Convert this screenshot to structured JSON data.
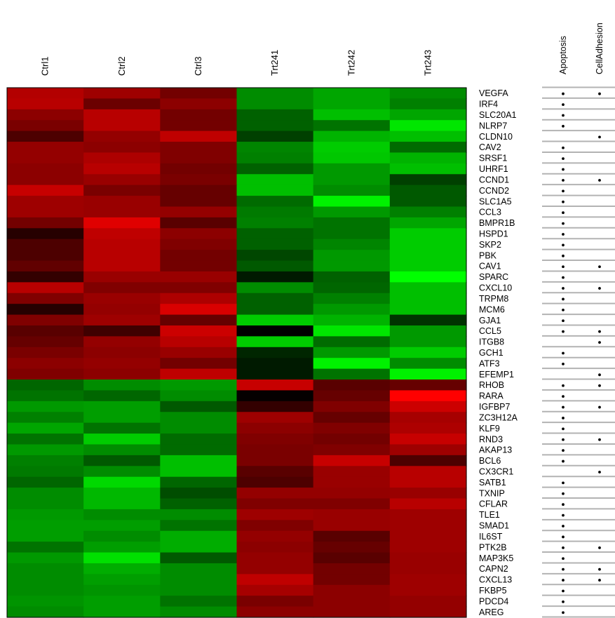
{
  "chart_data": {
    "type": "heatmap",
    "title": "",
    "columns": [
      "Ctrl1",
      "Ctrl2",
      "Ctrl3",
      "Trt241",
      "Trt242",
      "Trt243"
    ],
    "rows": [
      "VEGFA",
      "IRF4",
      "SLC20A1",
      "NLRP7",
      "CLDN10",
      "CAV2",
      "SRSF1",
      "UHRF1",
      "CCND1",
      "CCND2",
      "SLC1A5",
      "CCL3",
      "BMPR1B",
      "HSPD1",
      "SKP2",
      "PBK",
      "CAV1",
      "SPARC",
      "CXCL10",
      "TRPM8",
      "MCM6",
      "GJA1",
      "CCL5",
      "ITGB8",
      "GCH1",
      "ATF3",
      "EFEMP1",
      "RHOB",
      "RARA",
      "IGFBP7",
      "ZC3H12A",
      "KLF9",
      "RND3",
      "AKAP13",
      "BCL6",
      "CX3CR1",
      "SATB1",
      "TXNIP",
      "CFLAR",
      "TLE1",
      "SMAD1",
      "IL6ST",
      "PTK2B",
      "MAP3K5",
      "CAPN2",
      "CXCL13",
      "FKBP5",
      "PDCD4",
      "AREG"
    ],
    "color_scale": {
      "low": "#00ff00",
      "mid": "#000000",
      "high": "#ff0000",
      "range": [
        -1,
        1
      ]
    },
    "values": [
      [
        0.7,
        0.62,
        0.45,
        -0.55,
        -0.65,
        -0.55
      ],
      [
        0.72,
        0.42,
        0.55,
        -0.55,
        -0.65,
        -0.5
      ],
      [
        0.55,
        0.72,
        0.45,
        -0.38,
        -0.75,
        -0.65
      ],
      [
        0.48,
        0.72,
        0.45,
        -0.38,
        -0.45,
        -0.9
      ],
      [
        0.3,
        0.58,
        0.75,
        -0.25,
        -0.7,
        -0.75
      ],
      [
        0.58,
        0.55,
        0.5,
        -0.52,
        -0.8,
        -0.42
      ],
      [
        0.58,
        0.68,
        0.5,
        -0.5,
        -0.78,
        -0.7
      ],
      [
        0.55,
        0.72,
        0.45,
        -0.38,
        -0.6,
        -0.75
      ],
      [
        0.55,
        0.6,
        0.48,
        -0.75,
        -0.6,
        -0.25
      ],
      [
        0.78,
        0.48,
        0.4,
        -0.75,
        -0.55,
        -0.35
      ],
      [
        0.62,
        0.6,
        0.4,
        -0.42,
        -0.95,
        -0.35
      ],
      [
        0.62,
        0.6,
        0.58,
        -0.48,
        -0.6,
        -0.5
      ],
      [
        0.45,
        0.88,
        0.35,
        -0.5,
        -0.45,
        -0.65
      ],
      [
        0.15,
        0.75,
        0.55,
        -0.38,
        -0.45,
        -0.8
      ],
      [
        0.3,
        0.72,
        0.5,
        -0.38,
        -0.52,
        -0.8
      ],
      [
        0.3,
        0.72,
        0.45,
        -0.28,
        -0.6,
        -0.8
      ],
      [
        0.38,
        0.72,
        0.45,
        -0.35,
        -0.6,
        -0.8
      ],
      [
        0.2,
        0.6,
        0.6,
        -0.1,
        -0.38,
        -1.0
      ],
      [
        0.72,
        0.5,
        0.5,
        -0.55,
        -0.4,
        -0.75
      ],
      [
        0.5,
        0.6,
        0.68,
        -0.38,
        -0.5,
        -0.75
      ],
      [
        0.15,
        0.58,
        0.85,
        -0.38,
        -0.6,
        -0.75
      ],
      [
        0.5,
        0.62,
        0.4,
        -0.8,
        -0.7,
        -0.2
      ],
      [
        0.35,
        0.25,
        0.8,
        0.0,
        -0.9,
        -0.6
      ],
      [
        0.4,
        0.58,
        0.72,
        -0.8,
        -0.42,
        -0.6
      ],
      [
        0.48,
        0.55,
        0.6,
        -0.15,
        -0.6,
        -0.8
      ],
      [
        0.55,
        0.58,
        0.45,
        -0.1,
        -0.95,
        -0.55
      ],
      [
        0.5,
        0.55,
        0.75,
        -0.1,
        -0.45,
        -0.95
      ],
      [
        -0.4,
        -0.55,
        -0.6,
        0.78,
        0.35,
        0.4
      ],
      [
        -0.45,
        -0.4,
        -0.55,
        0.02,
        0.4,
        1.0
      ],
      [
        -0.6,
        -0.62,
        -0.35,
        0.2,
        0.5,
        0.8
      ],
      [
        -0.5,
        -0.62,
        -0.55,
        0.62,
        0.4,
        0.65
      ],
      [
        -0.65,
        -0.45,
        -0.55,
        0.55,
        0.5,
        0.68
      ],
      [
        -0.45,
        -0.8,
        -0.42,
        0.5,
        0.45,
        0.78
      ],
      [
        -0.6,
        -0.55,
        -0.42,
        0.48,
        0.5,
        0.62
      ],
      [
        -0.5,
        -0.35,
        -0.75,
        0.48,
        0.78,
        0.3
      ],
      [
        -0.48,
        -0.55,
        -0.75,
        0.35,
        0.6,
        0.72
      ],
      [
        -0.4,
        -0.85,
        -0.4,
        0.3,
        0.6,
        0.72
      ],
      [
        -0.55,
        -0.72,
        -0.3,
        0.58,
        0.58,
        0.6
      ],
      [
        -0.55,
        -0.72,
        -0.38,
        0.5,
        0.5,
        0.72
      ],
      [
        -0.6,
        -0.55,
        -0.55,
        0.62,
        0.6,
        0.62
      ],
      [
        -0.62,
        -0.62,
        -0.45,
        0.5,
        0.6,
        0.62
      ],
      [
        -0.62,
        -0.55,
        -0.68,
        0.58,
        0.35,
        0.62
      ],
      [
        -0.45,
        -0.62,
        -0.68,
        0.55,
        0.4,
        0.62
      ],
      [
        -0.6,
        -0.88,
        -0.35,
        0.58,
        0.35,
        0.6
      ],
      [
        -0.55,
        -0.68,
        -0.55,
        0.58,
        0.45,
        0.6
      ],
      [
        -0.55,
        -0.62,
        -0.55,
        0.75,
        0.45,
        0.62
      ],
      [
        -0.55,
        -0.58,
        -0.55,
        0.65,
        0.55,
        0.62
      ],
      [
        -0.58,
        -0.62,
        -0.45,
        0.48,
        0.55,
        0.58
      ],
      [
        -0.55,
        -0.62,
        -0.55,
        0.55,
        0.55,
        0.58
      ]
    ],
    "annotation_columns": [
      "Apoptosis",
      "CellAdhesion"
    ],
    "annotations": [
      [
        true,
        true
      ],
      [
        true,
        false
      ],
      [
        true,
        false
      ],
      [
        true,
        false
      ],
      [
        false,
        true
      ],
      [
        true,
        false
      ],
      [
        true,
        false
      ],
      [
        true,
        false
      ],
      [
        true,
        true
      ],
      [
        true,
        false
      ],
      [
        true,
        false
      ],
      [
        true,
        false
      ],
      [
        true,
        false
      ],
      [
        true,
        false
      ],
      [
        true,
        false
      ],
      [
        true,
        false
      ],
      [
        true,
        true
      ],
      [
        true,
        false
      ],
      [
        true,
        true
      ],
      [
        true,
        false
      ],
      [
        true,
        false
      ],
      [
        true,
        false
      ],
      [
        true,
        true
      ],
      [
        false,
        true
      ],
      [
        true,
        false
      ],
      [
        true,
        false
      ],
      [
        false,
        true
      ],
      [
        true,
        true
      ],
      [
        true,
        false
      ],
      [
        true,
        true
      ],
      [
        true,
        false
      ],
      [
        true,
        false
      ],
      [
        true,
        true
      ],
      [
        true,
        false
      ],
      [
        true,
        false
      ],
      [
        false,
        true
      ],
      [
        true,
        false
      ],
      [
        true,
        false
      ],
      [
        true,
        false
      ],
      [
        true,
        false
      ],
      [
        true,
        false
      ],
      [
        true,
        false
      ],
      [
        true,
        true
      ],
      [
        true,
        false
      ],
      [
        true,
        true
      ],
      [
        true,
        true
      ],
      [
        true,
        false
      ],
      [
        true,
        false
      ],
      [
        true,
        false
      ]
    ]
  }
}
